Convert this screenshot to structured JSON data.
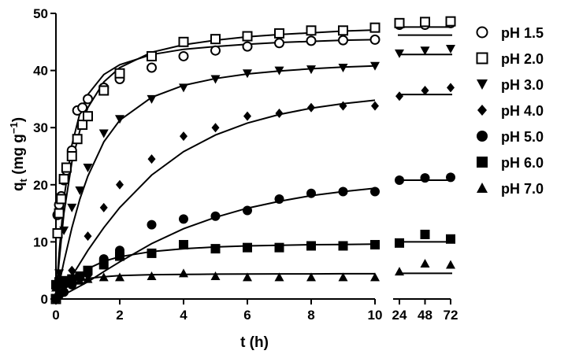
{
  "chart_data": {
    "type": "scatter",
    "xlabel": "t (h)",
    "ylabel_main": "q",
    "ylabel_sub": "t",
    "ylabel_unit": " (mg g",
    "ylabel_exp": "−1",
    "ylabel_close": ")",
    "ylim": [
      0,
      50
    ],
    "y_ticks": [
      "0",
      "10",
      "20",
      "30",
      "40",
      "50"
    ],
    "x_ticks_main": [
      "0",
      "2",
      "4",
      "6",
      "8",
      "10"
    ],
    "x_ticks_long": [
      "24",
      "48",
      "72"
    ],
    "xlim_main": [
      0,
      10
    ],
    "long_times": [
      24,
      48,
      72
    ],
    "legend_position": "right",
    "series": [
      {
        "name": "pH 1.5",
        "marker": "circle-open",
        "points": [
          [
            0,
            0
          ],
          [
            0.05,
            14.7
          ],
          [
            0.1,
            16.5
          ],
          [
            0.167,
            18.0
          ],
          [
            0.25,
            20.8
          ],
          [
            0.33,
            22.5
          ],
          [
            0.5,
            26
          ],
          [
            0.67,
            33
          ],
          [
            0.83,
            33.5
          ],
          [
            1,
            35
          ],
          [
            1.5,
            37
          ],
          [
            2,
            38.5
          ],
          [
            3,
            40.5
          ],
          [
            4,
            42.5
          ],
          [
            5,
            43.5
          ],
          [
            6,
            44.2
          ],
          [
            7,
            44.8
          ],
          [
            8,
            45.2
          ],
          [
            9,
            45.3
          ],
          [
            10,
            45.4
          ],
          [
            24,
            48
          ],
          [
            48,
            48
          ],
          [
            72,
            48.3
          ]
        ],
        "fit": [
          [
            0,
            0
          ],
          [
            0.1,
            8
          ],
          [
            0.25,
            17.5
          ],
          [
            0.5,
            27
          ],
          [
            0.75,
            32.5
          ],
          [
            1,
            35.8
          ],
          [
            1.5,
            39.3
          ],
          [
            2,
            41
          ],
          [
            3,
            42.8
          ],
          [
            4,
            43.7
          ],
          [
            5,
            44.2
          ],
          [
            6,
            44.6
          ],
          [
            7,
            44.9
          ],
          [
            8,
            45.1
          ],
          [
            9,
            45.3
          ],
          [
            10,
            45.4
          ]
        ],
        "fit_long": 46.2
      },
      {
        "name": "pH 2.0",
        "marker": "square-open",
        "points": [
          [
            0,
            0
          ],
          [
            0.05,
            11.5
          ],
          [
            0.1,
            15
          ],
          [
            0.167,
            17.5
          ],
          [
            0.25,
            21
          ],
          [
            0.33,
            23
          ],
          [
            0.5,
            25
          ],
          [
            0.67,
            28
          ],
          [
            0.83,
            30.5
          ],
          [
            1,
            32
          ],
          [
            1.5,
            36.5
          ],
          [
            2,
            39.5
          ],
          [
            3,
            42.5
          ],
          [
            4,
            45
          ],
          [
            5,
            45.5
          ],
          [
            6,
            46
          ],
          [
            7,
            46.5
          ],
          [
            8,
            47
          ],
          [
            9,
            47
          ],
          [
            10,
            47.5
          ],
          [
            24,
            48.3
          ],
          [
            48,
            48.5
          ],
          [
            72,
            48.6
          ]
        ],
        "fit": [
          [
            0,
            0
          ],
          [
            0.1,
            6.5
          ],
          [
            0.25,
            15
          ],
          [
            0.5,
            24
          ],
          [
            0.75,
            29.5
          ],
          [
            1,
            33.5
          ],
          [
            1.5,
            38
          ],
          [
            2,
            40.5
          ],
          [
            3,
            43.2
          ],
          [
            4,
            44.5
          ],
          [
            5,
            45.3
          ],
          [
            6,
            45.9
          ],
          [
            7,
            46.3
          ],
          [
            8,
            46.6
          ],
          [
            9,
            46.9
          ],
          [
            10,
            47.1
          ]
        ],
        "fit_long": 47.6
      },
      {
        "name": "pH 3.0",
        "marker": "triangle-down",
        "points": [
          [
            0,
            0
          ],
          [
            0.1,
            4.5
          ],
          [
            0.25,
            12
          ],
          [
            0.5,
            16
          ],
          [
            0.75,
            19
          ],
          [
            1,
            23
          ],
          [
            1.5,
            29
          ],
          [
            2,
            31.5
          ],
          [
            3,
            35
          ],
          [
            4,
            37
          ],
          [
            5,
            38.5
          ],
          [
            6,
            39.5
          ],
          [
            7,
            40
          ],
          [
            8,
            40.2
          ],
          [
            9,
            40.5
          ],
          [
            10,
            40.8
          ],
          [
            24,
            43
          ],
          [
            48,
            43.5
          ],
          [
            72,
            43.8
          ]
        ],
        "fit": [
          [
            0,
            0
          ],
          [
            0.25,
            6.5
          ],
          [
            0.5,
            12.5
          ],
          [
            0.75,
            17.5
          ],
          [
            1,
            21.5
          ],
          [
            1.5,
            27.5
          ],
          [
            2,
            31.3
          ],
          [
            3,
            35.3
          ],
          [
            4,
            37.4
          ],
          [
            5,
            38.6
          ],
          [
            6,
            39.4
          ],
          [
            7,
            39.9
          ],
          [
            8,
            40.3
          ],
          [
            9,
            40.6
          ],
          [
            10,
            40.8
          ]
        ],
        "fit_long": 42.8
      },
      {
        "name": "pH 4.0",
        "marker": "diamond",
        "points": [
          [
            0,
            0
          ],
          [
            0.1,
            1
          ],
          [
            0.25,
            2.5
          ],
          [
            0.5,
            5
          ],
          [
            1,
            11
          ],
          [
            1.5,
            16
          ],
          [
            2,
            20
          ],
          [
            3,
            24.5
          ],
          [
            4,
            28.5
          ],
          [
            5,
            30
          ],
          [
            6,
            32
          ],
          [
            7,
            32.5
          ],
          [
            8,
            33.5
          ],
          [
            9,
            33.8
          ],
          [
            10,
            33.8
          ],
          [
            24,
            35.5
          ],
          [
            48,
            36.5
          ],
          [
            72,
            37
          ]
        ],
        "fit": [
          [
            0,
            0
          ],
          [
            0.5,
            4
          ],
          [
            1,
            8.5
          ],
          [
            1.5,
            12.5
          ],
          [
            2,
            16
          ],
          [
            3,
            21.7
          ],
          [
            4,
            25.8
          ],
          [
            5,
            28.7
          ],
          [
            6,
            30.8
          ],
          [
            7,
            32.3
          ],
          [
            8,
            33.4
          ],
          [
            9,
            34.2
          ],
          [
            10,
            34.8
          ]
        ],
        "fit_long": 35.8
      },
      {
        "name": "pH 5.0",
        "marker": "circle-filled",
        "points": [
          [
            0,
            0
          ],
          [
            0.1,
            0.7
          ],
          [
            0.25,
            1.2
          ],
          [
            0.5,
            2.5
          ],
          [
            1,
            4.5
          ],
          [
            1.5,
            7
          ],
          [
            2,
            8.5
          ],
          [
            3,
            13
          ],
          [
            4,
            14
          ],
          [
            5,
            14.5
          ],
          [
            6,
            15.5
          ],
          [
            7,
            17.5
          ],
          [
            8,
            18.5
          ],
          [
            9,
            18.8
          ],
          [
            10,
            18.8
          ],
          [
            24,
            20.8
          ],
          [
            48,
            21.2
          ],
          [
            72,
            21.3
          ]
        ],
        "fit": [
          [
            0,
            0
          ],
          [
            0.5,
            1.5
          ],
          [
            1,
            3
          ],
          [
            1.5,
            4.8
          ],
          [
            2,
            6.5
          ],
          [
            3,
            9.7
          ],
          [
            4,
            12.3
          ],
          [
            5,
            14.3
          ],
          [
            6,
            15.9
          ],
          [
            7,
            17.1
          ],
          [
            8,
            18.1
          ],
          [
            9,
            18.8
          ],
          [
            10,
            19.4
          ]
        ],
        "fit_long": 20.8
      },
      {
        "name": "pH 6.0",
        "marker": "square-filled",
        "points": [
          [
            0,
            2.5
          ],
          [
            0.1,
            3
          ],
          [
            0.25,
            3.2
          ],
          [
            0.5,
            3.5
          ],
          [
            0.75,
            4
          ],
          [
            1,
            5
          ],
          [
            1.5,
            6
          ],
          [
            2,
            7.5
          ],
          [
            3,
            8
          ],
          [
            4,
            9.5
          ],
          [
            5,
            8.8
          ],
          [
            6,
            9
          ],
          [
            7,
            9
          ],
          [
            8,
            9.3
          ],
          [
            9,
            9.3
          ],
          [
            10,
            9.5
          ],
          [
            24,
            9.8
          ],
          [
            48,
            11.3
          ],
          [
            72,
            10.5
          ]
        ],
        "fit": [
          [
            0,
            0
          ],
          [
            0.25,
            1.7
          ],
          [
            0.5,
            3.2
          ],
          [
            1,
            5.3
          ],
          [
            1.5,
            6.6
          ],
          [
            2,
            7.4
          ],
          [
            3,
            8.3
          ],
          [
            4,
            8.8
          ],
          [
            5,
            9.1
          ],
          [
            6,
            9.3
          ],
          [
            7,
            9.4
          ],
          [
            8,
            9.5
          ],
          [
            9,
            9.55
          ],
          [
            10,
            9.6
          ]
        ],
        "fit_long": 10.0
      },
      {
        "name": "pH 7.0",
        "marker": "triangle-up",
        "points": [
          [
            0,
            2
          ],
          [
            0.1,
            2.5
          ],
          [
            0.25,
            2.8
          ],
          [
            0.5,
            3
          ],
          [
            0.75,
            3.2
          ],
          [
            1,
            3.5
          ],
          [
            1.5,
            3.8
          ],
          [
            2,
            3.8
          ],
          [
            3,
            4
          ],
          [
            4,
            4.5
          ],
          [
            5,
            4
          ],
          [
            6,
            3.8
          ],
          [
            7,
            3.8
          ],
          [
            8,
            3.8
          ],
          [
            9,
            3.8
          ],
          [
            10,
            3.8
          ],
          [
            24,
            4.8
          ],
          [
            48,
            6.2
          ],
          [
            72,
            6
          ]
        ],
        "fit": [
          [
            0,
            0
          ],
          [
            0.25,
            1.7
          ],
          [
            0.5,
            2.7
          ],
          [
            1,
            3.6
          ],
          [
            1.5,
            3.9
          ],
          [
            2,
            4.1
          ],
          [
            3,
            4.25
          ],
          [
            4,
            4.3
          ],
          [
            5,
            4.35
          ],
          [
            6,
            4.38
          ],
          [
            7,
            4.4
          ],
          [
            8,
            4.4
          ],
          [
            9,
            4.42
          ],
          [
            10,
            4.42
          ]
        ],
        "fit_long": 4.5
      }
    ]
  }
}
